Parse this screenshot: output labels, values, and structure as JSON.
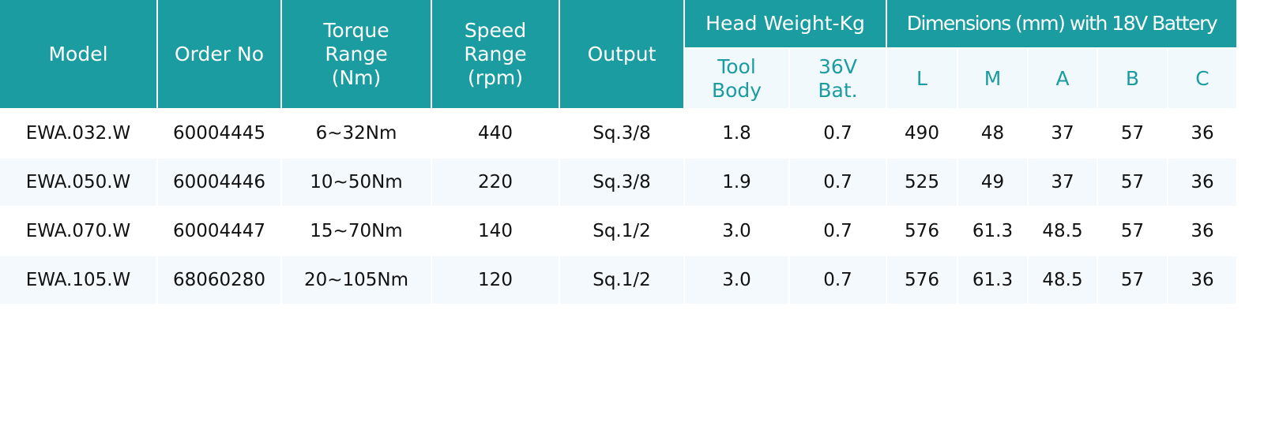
{
  "table": {
    "headers": {
      "model": "Model",
      "order_no": "Order No",
      "torque": "Torque Range (Nm)",
      "speed": "Speed Range (rpm)",
      "output": "Output",
      "head_weight": "Head Weight-Kg",
      "dimensions": "Dimensions (mm) with 18V Battery",
      "tool_body": "Tool Body",
      "bat_36v": "36V Bat.",
      "L": "L",
      "M": "M",
      "A": "A",
      "B": "B",
      "C": "C"
    },
    "rows": [
      [
        "EWA.032.W",
        "60004445",
        "6~32Nm",
        "440",
        "Sq.3/8",
        "1.8",
        "0.7",
        "490",
        "48",
        "37",
        "57",
        "36"
      ],
      [
        "EWA.050.W",
        "60004446",
        "10~50Nm",
        "220",
        "Sq.3/8",
        "1.9",
        "0.7",
        "525",
        "49",
        "37",
        "57",
        "36"
      ],
      [
        "EWA.070.W",
        "60004447",
        "15~70Nm",
        "140",
        "Sq.1/2",
        "3.0",
        "0.7",
        "576",
        "61.3",
        "48.5",
        "57",
        "36"
      ],
      [
        "EWA.105.W",
        "68060280",
        "20~105Nm",
        "120",
        "Sq.1/2",
        "3.0",
        "0.7",
        "576",
        "61.3",
        "48.5",
        "57",
        "36"
      ]
    ]
  },
  "colors": {
    "header": "#1a9ca0",
    "subheader_bg": "#f2f9fc",
    "alt_row": "#f3f9fd"
  }
}
